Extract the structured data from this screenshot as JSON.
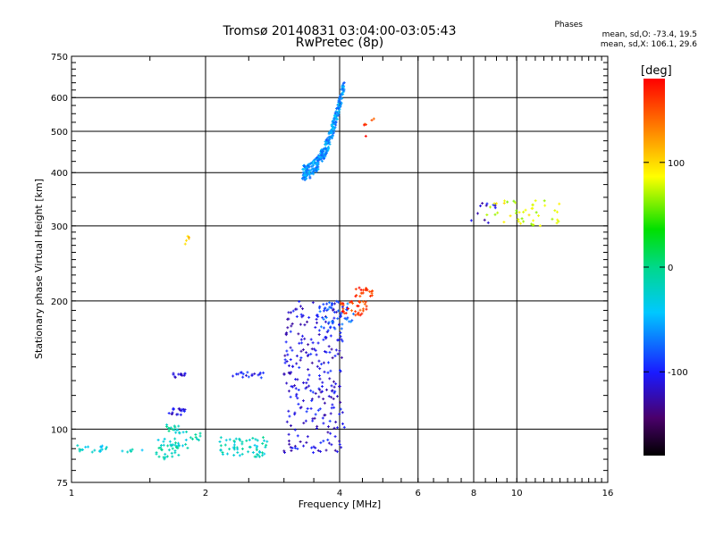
{
  "chart_data": {
    "type": "scatter",
    "title": "Tromsø 20140831 03:04:00-03:05:43",
    "subtitle": "RwPretec (8p)",
    "xlabel": "Frequency [MHz]",
    "ylabel": "Stationary phase Virtual Height [km]",
    "x_scale": "log",
    "y_scale": "log",
    "xlim": [
      1,
      16
    ],
    "ylim": [
      75,
      750
    ],
    "x_ticks": [
      "1",
      "2",
      "4",
      "6",
      "8",
      "10",
      "16"
    ],
    "y_ticks": [
      "75",
      "100",
      "200",
      "300",
      "400",
      "500",
      "600",
      "750"
    ],
    "grid": true,
    "colorbar": {
      "label": "[deg]",
      "range": [
        -180,
        180
      ],
      "ticks": [
        "100",
        "0",
        "-100"
      ],
      "colormap": "rainbow"
    },
    "stats_header": "Phases",
    "stats": [
      "mean, sd,O: -73.4, 19.5",
      "mean, sd,X: 106.1, 29.6"
    ],
    "clusters": [
      {
        "f": [
          1.0,
          1.2
        ],
        "h": [
          88,
          92
        ],
        "n": 18,
        "phase": -30
      },
      {
        "f": [
          1.3,
          1.45
        ],
        "h": [
          88,
          91
        ],
        "n": 6,
        "phase": -25
      },
      {
        "f": [
          1.55,
          1.75
        ],
        "h": [
          85,
          95
        ],
        "n": 35,
        "phase": -20
      },
      {
        "f": [
          1.6,
          1.75
        ],
        "h": [
          98,
          104
        ],
        "n": 15,
        "phase": -15
      },
      {
        "f": [
          1.65,
          1.8
        ],
        "h": [
          108,
          112
        ],
        "n": 18,
        "phase": -110
      },
      {
        "f": [
          1.68,
          1.8
        ],
        "h": [
          132,
          136
        ],
        "n": 12,
        "phase": -110
      },
      {
        "f": [
          1.72,
          1.95
        ],
        "h": [
          90,
          100
        ],
        "n": 20,
        "phase": -20
      },
      {
        "f": [
          1.8,
          1.85
        ],
        "h": [
          270,
          285
        ],
        "n": 5,
        "phase": 110
      },
      {
        "f": [
          2.15,
          2.75
        ],
        "h": [
          86,
          96
        ],
        "n": 60,
        "phase": -20
      },
      {
        "f": [
          2.3,
          2.7
        ],
        "h": [
          132,
          136
        ],
        "n": 18,
        "phase": -105
      },
      {
        "f": [
          3.0,
          4.1
        ],
        "h": [
          88,
          200
        ],
        "n": 260,
        "phase": -110
      },
      {
        "f": [
          3.6,
          4.3
        ],
        "h": [
          170,
          200
        ],
        "n": 50,
        "phase": -80
      },
      {
        "f": [
          4.0,
          4.6
        ],
        "h": [
          185,
          200
        ],
        "n": 35,
        "phase": 160
      },
      {
        "f": [
          4.3,
          4.75
        ],
        "h": [
          205,
          215
        ],
        "n": 22,
        "phase": 165
      },
      {
        "f": [
          3.3,
          4.1
        ],
        "h": [
          400,
          650
        ],
        "n": 320,
        "phase": -60
      },
      {
        "f": [
          4.5,
          4.8
        ],
        "h": [
          500,
          550
        ],
        "n": 6,
        "phase": 160
      },
      {
        "f": [
          7.9,
          9.0
        ],
        "h": [
          300,
          340
        ],
        "n": 12,
        "phase": -110
      },
      {
        "f": [
          8.5,
          12.5
        ],
        "h": [
          300,
          345
        ],
        "n": 45,
        "phase": 80
      }
    ]
  }
}
